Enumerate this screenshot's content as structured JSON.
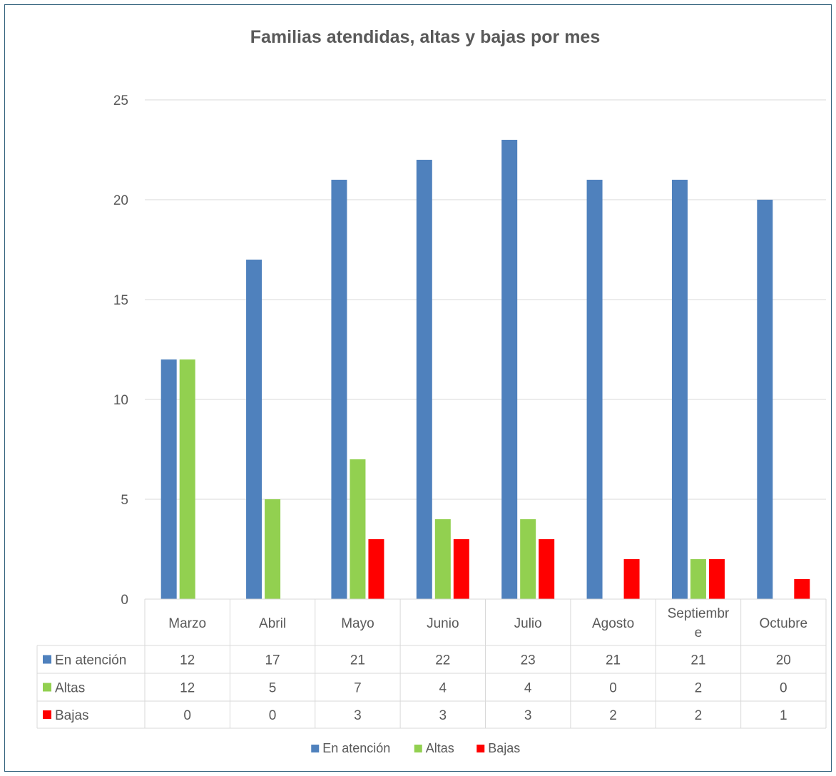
{
  "chart_data": {
    "type": "bar",
    "title": "Familias atendidas, altas y bajas por mes",
    "categories": [
      "Marzo",
      "Abril",
      "Mayo",
      "Junio",
      "Julio",
      "Agosto",
      "Septiembre",
      "Octubre"
    ],
    "category_labels": [
      [
        "Marzo"
      ],
      [
        "Abril"
      ],
      [
        "Mayo"
      ],
      [
        "Junio"
      ],
      [
        "Julio"
      ],
      [
        "Agosto"
      ],
      [
        "Septiembr",
        "e"
      ],
      [
        "Octubre"
      ]
    ],
    "series": [
      {
        "name": "En atención",
        "color": "#4f81bd",
        "values": [
          12,
          17,
          21,
          22,
          23,
          21,
          21,
          20
        ]
      },
      {
        "name": "Altas",
        "color": "#92d050",
        "values": [
          12,
          5,
          7,
          4,
          4,
          0,
          2,
          0
        ]
      },
      {
        "name": "Bajas",
        "color": "#ff0000",
        "values": [
          0,
          0,
          3,
          3,
          3,
          2,
          2,
          1
        ]
      }
    ],
    "ylim": [
      0,
      25
    ],
    "yticks": [
      0,
      5,
      10,
      15,
      20,
      25
    ],
    "grid": true,
    "legend_position": "bottom",
    "data_table": true
  }
}
